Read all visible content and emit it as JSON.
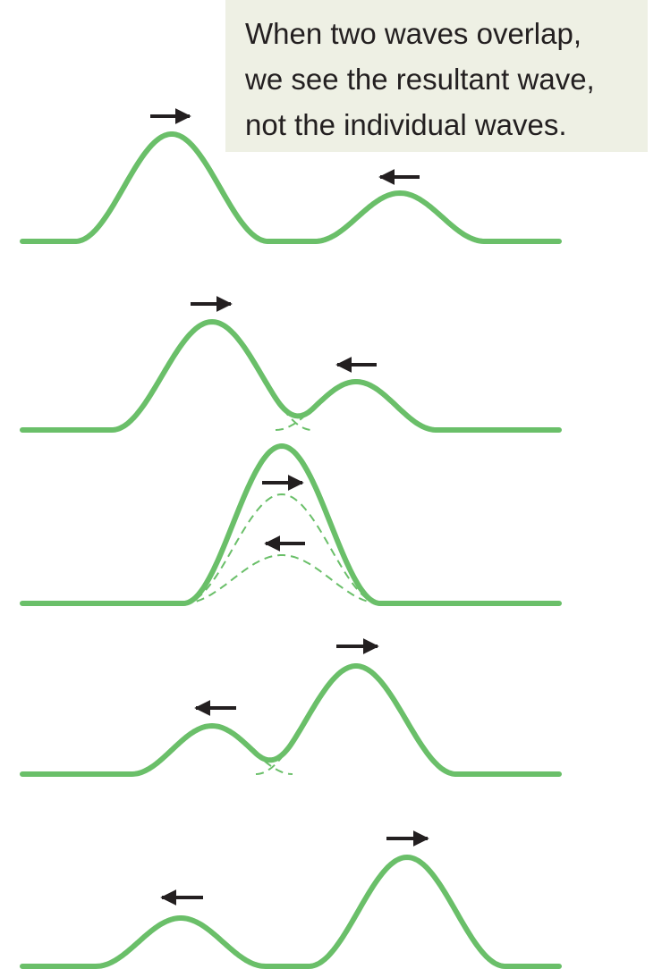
{
  "caption": {
    "line1": "When two waves overlap,",
    "line2": "we see the resultant wave,",
    "line3": "not the individual waves."
  },
  "colors": {
    "wave": "#6abf69",
    "arrow": "#231f20",
    "callout_background": "#eef0e4"
  },
  "stages": [
    {
      "name": "before-overlap",
      "right_pulse": "right-arrow",
      "left_pulse": "left-arrow"
    },
    {
      "name": "partial-overlap-approaching",
      "right_pulse": "right-arrow",
      "left_pulse": "left-arrow"
    },
    {
      "name": "full-overlap",
      "right_pulse": "right-arrow",
      "left_pulse": "left-arrow"
    },
    {
      "name": "partial-overlap-separating",
      "right_pulse": "right-arrow",
      "left_pulse": "left-arrow"
    },
    {
      "name": "after-overlap",
      "right_pulse": "right-arrow",
      "left_pulse": "left-arrow"
    }
  ]
}
